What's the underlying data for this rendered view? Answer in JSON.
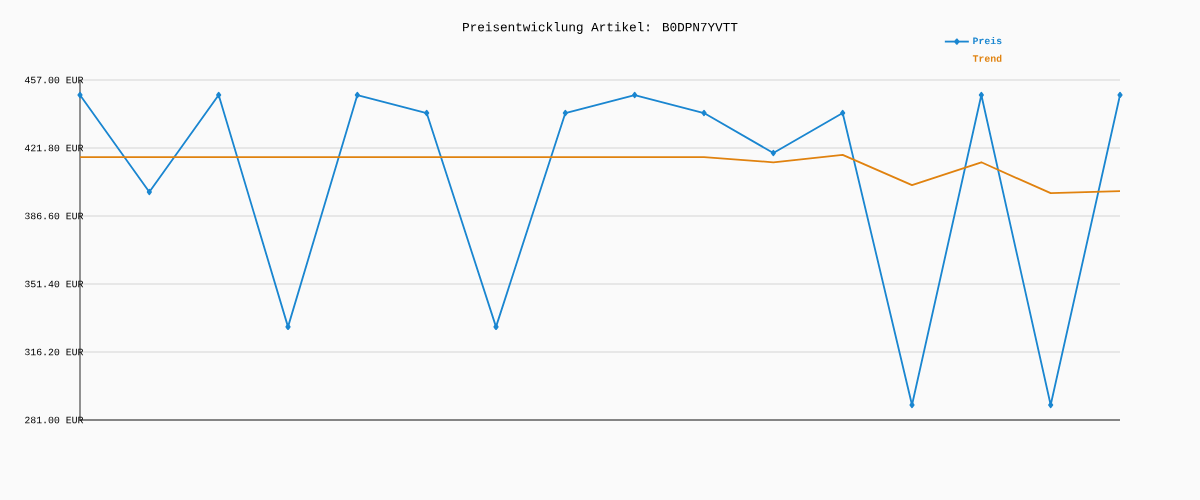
{
  "chart_data": {
    "type": "line",
    "title": "Preisentwicklung Artikel: B0DPN7YVTT",
    "categories": [
      null,
      null,
      null,
      null,
      null,
      null,
      null,
      null,
      null,
      null,
      null,
      null,
      null,
      null,
      null,
      null
    ],
    "series": [
      {
        "name": "Preis",
        "color": "#1a86d0",
        "marker": "diamond",
        "values": [
          449.2,
          399.0,
          449.2,
          329.2,
          449.2,
          439.9,
          329.2,
          439.9,
          449.2,
          439.9,
          419.2,
          439.9,
          288.8,
          449.2,
          288.8,
          449.2
        ]
      },
      {
        "name": "Trend",
        "color": "#e0820f",
        "marker": "none",
        "values": [
          417.1,
          417.1,
          417.1,
          417.1,
          417.1,
          417.1,
          417.1,
          417.1,
          417.1,
          417.1,
          414.4,
          418.2,
          402.6,
          414.4,
          398.4,
          399.5
        ]
      }
    ],
    "ylim": [
      281,
      457
    ],
    "yticks": [
      {
        "value": 281,
        "label": "281.00 EUR"
      },
      {
        "value": 316.2,
        "label": "316.20 EUR"
      },
      {
        "value": 351.4,
        "label": "351.40 EUR"
      },
      {
        "value": 386.6,
        "label": "386.60 EUR"
      },
      {
        "value": 421.8,
        "label": "421.80 EUR"
      },
      {
        "value": 457,
        "label": "457.00 EUR"
      }
    ],
    "grid": "y",
    "legend": "top right",
    "tick_labels": "y"
  }
}
